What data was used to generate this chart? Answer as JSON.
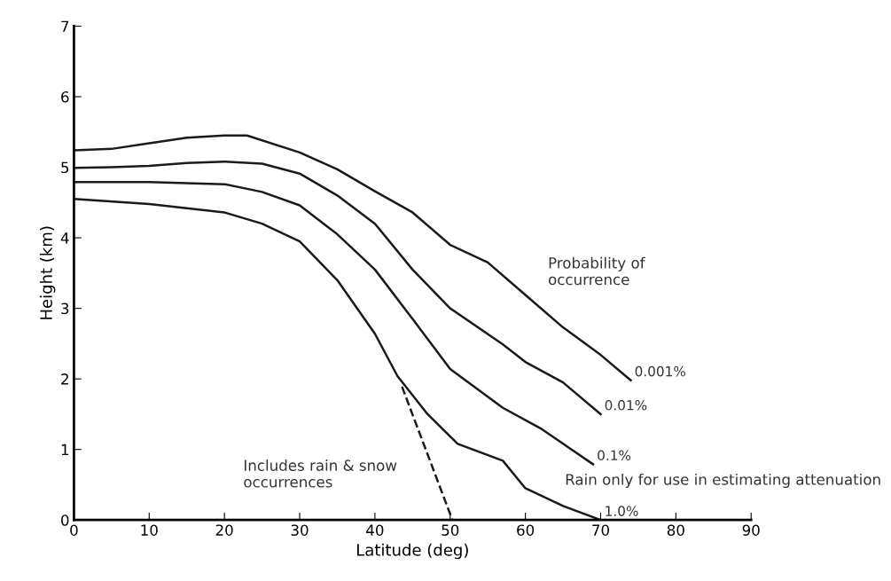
{
  "chart_data": {
    "type": "line",
    "xlabel": "Latitude (deg)",
    "ylabel": "Height (km)",
    "xlim": [
      0,
      90
    ],
    "ylim": [
      0,
      7
    ],
    "xticks": [
      0,
      10,
      20,
      30,
      40,
      50,
      60,
      70,
      80,
      90
    ],
    "yticks": [
      0,
      1,
      2,
      3,
      4,
      5,
      6,
      7
    ],
    "grid": false,
    "legend": false,
    "marker": "none",
    "series": [
      {
        "name": "0.001%",
        "color": "#1a1a1a",
        "x": [
          0,
          5,
          10,
          15,
          20,
          23,
          30,
          35,
          40,
          45,
          50,
          55,
          60,
          65,
          70,
          74
        ],
        "values": [
          5.24,
          5.26,
          5.34,
          5.42,
          5.45,
          5.45,
          5.21,
          4.97,
          4.66,
          4.36,
          3.9,
          3.65,
          3.19,
          2.73,
          2.34,
          1.98
        ]
      },
      {
        "name": "0.01%",
        "color": "#1a1a1a",
        "x": [
          0,
          5,
          10,
          15,
          20,
          25,
          30,
          35,
          40,
          45,
          50,
          57,
          60,
          65,
          70
        ],
        "values": [
          4.99,
          5.0,
          5.02,
          5.06,
          5.08,
          5.05,
          4.91,
          4.6,
          4.2,
          3.55,
          3.0,
          2.49,
          2.24,
          1.95,
          1.5
        ]
      },
      {
        "name": "0.1%",
        "color": "#1a1a1a",
        "x": [
          0,
          10,
          20,
          25,
          30,
          35,
          40,
          45,
          50,
          57,
          62,
          69
        ],
        "values": [
          4.79,
          4.79,
          4.76,
          4.65,
          4.46,
          4.05,
          3.55,
          2.85,
          2.14,
          1.59,
          1.3,
          0.79
        ]
      },
      {
        "name": "1.0%",
        "color": "#1a1a1a",
        "x": [
          0,
          10,
          20,
          25,
          30,
          35,
          40,
          43,
          47,
          51,
          57,
          60,
          65,
          70
        ],
        "values": [
          4.55,
          4.48,
          4.36,
          4.2,
          3.95,
          3.4,
          2.64,
          2.04,
          1.5,
          1.08,
          0.84,
          0.45,
          0.2,
          0.0
        ]
      },
      {
        "color": "#1a1a1a",
        "line_style": "dashed",
        "x": [
          43.6,
          50.3
        ],
        "values": [
          1.89,
          0.0
        ]
      }
    ],
    "annotations": [
      "Probability of occurrence",
      "Includes rain & snow occurrences",
      "Rain only for use in estimating attenuation"
    ]
  }
}
